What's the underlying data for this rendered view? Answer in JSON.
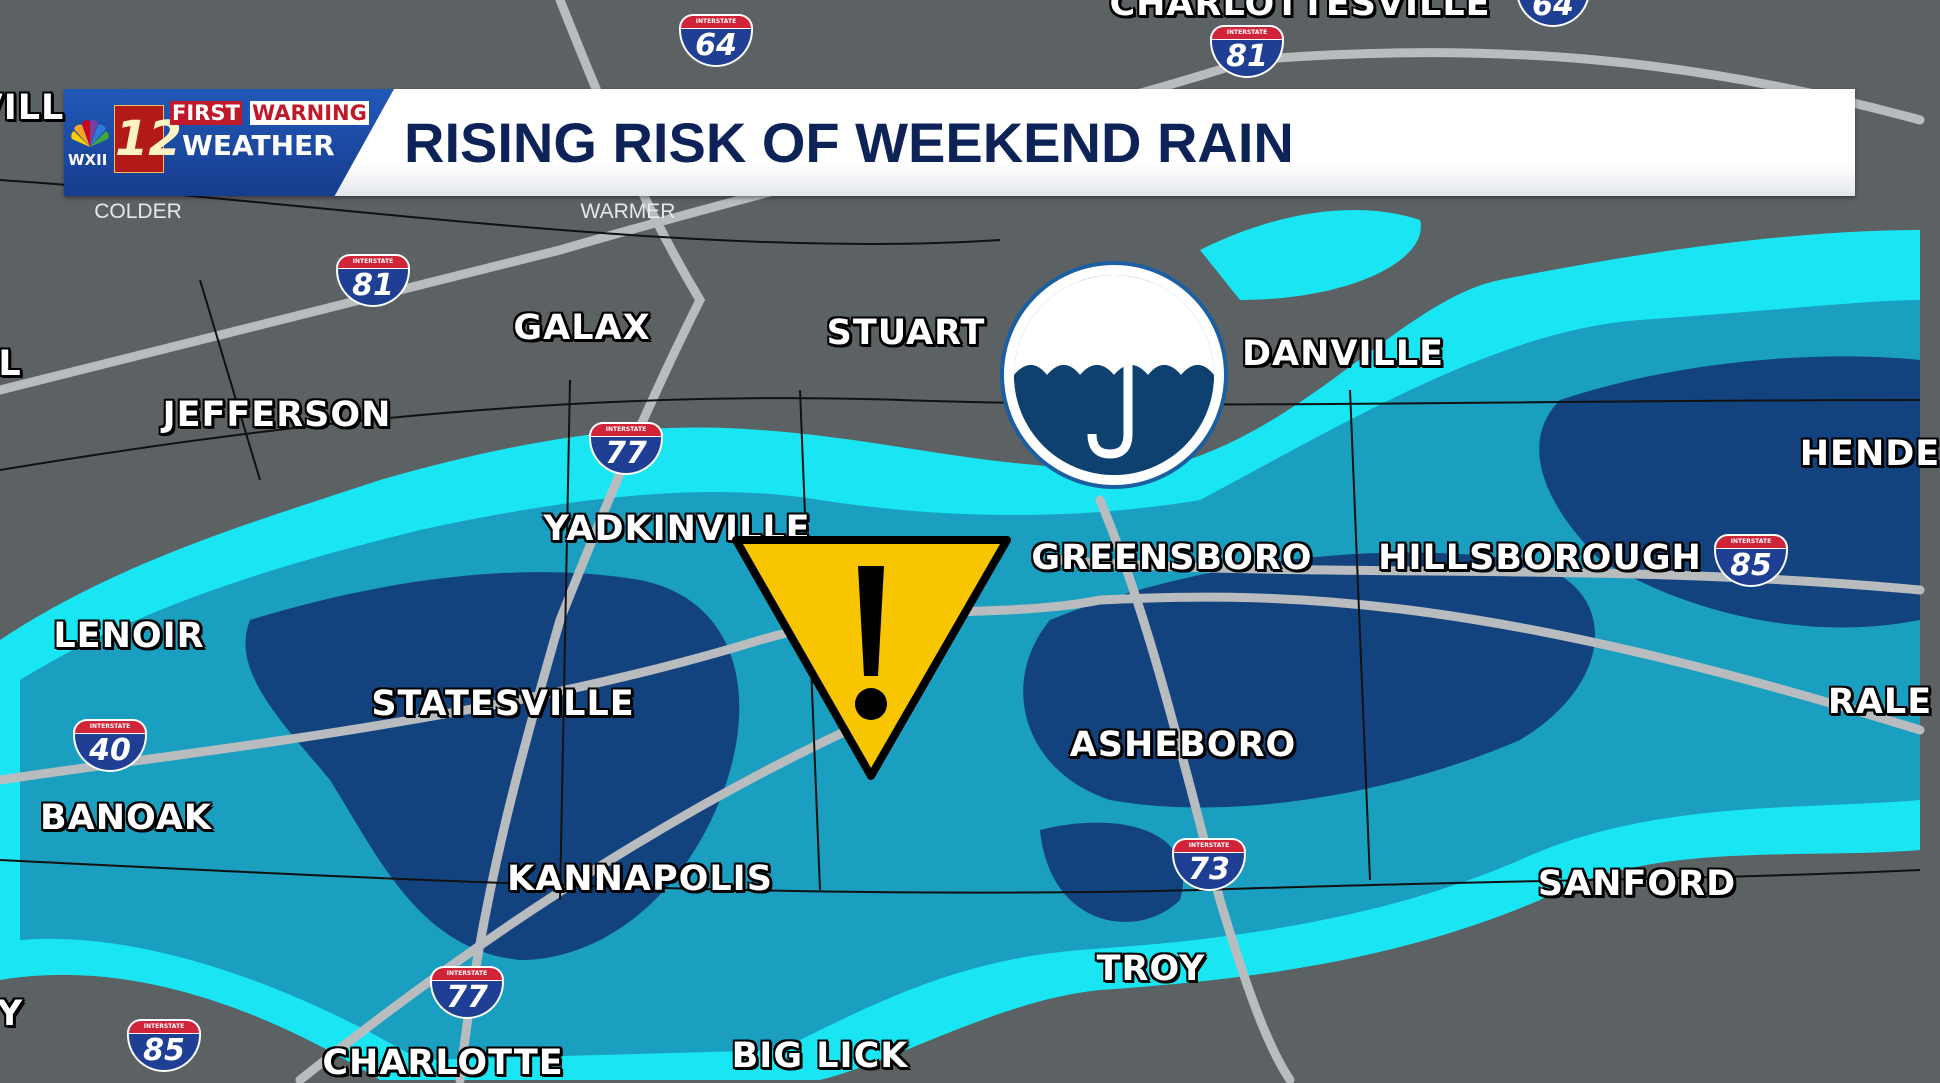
{
  "banner": {
    "station": "WXII",
    "channel": "12",
    "brand_line1_a": "FIRST",
    "brand_line1_b": "WARNING",
    "brand_line2": "WEATHER",
    "title": "RISING RISK OF WEEKEND RAIN"
  },
  "legend": {
    "left": "COLDER",
    "right": "WARMER"
  },
  "colors": {
    "rain_light": "#19e6f2",
    "rain_mid": "#1a9fc0",
    "rain_heavy": "#13437e",
    "land": "#5c6164",
    "banner_blue": "#2158b8",
    "title": "#0d2358",
    "warning": "#f7c600"
  },
  "icons": [
    "umbrella-icon",
    "warning-triangle-icon",
    "nbc-peacock-icon"
  ],
  "cities": [
    "GALAX",
    "STUART",
    "DANVILLE",
    "JEFFERSON",
    "YADKINVILLE",
    "GREENSBORO",
    "HILLSBOROUGH",
    "HENDE",
    "LENOIR",
    "STATESVILLE",
    "ASHEBORO",
    "RALE",
    "BANOAK",
    "KANNAPOLIS",
    "SANFORD",
    "TROY",
    "CHARLOTTE",
    "BIG LICK",
    "VILL",
    "L",
    "Y",
    "CHARLOTTESVILLE"
  ],
  "shields": [
    "64",
    "81",
    "81",
    "77",
    "40",
    "85",
    "73",
    "77",
    "85",
    "64"
  ],
  "shield_label": "INTERSTATE"
}
